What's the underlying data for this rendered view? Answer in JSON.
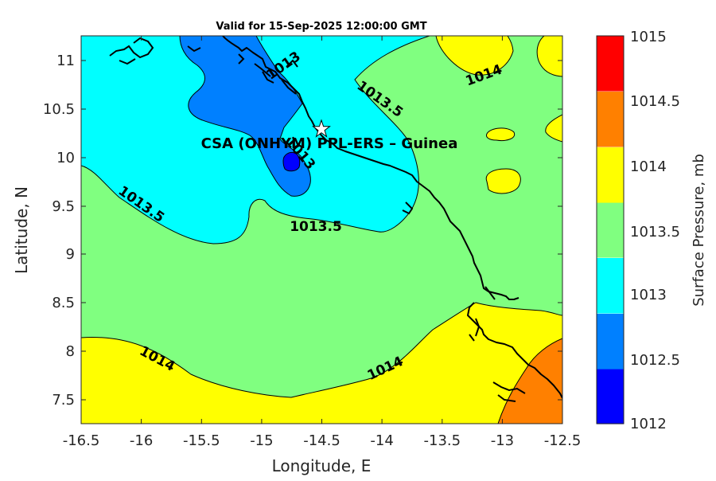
{
  "title": "Valid for 15-Sep-2025 12:00:00 GMT",
  "site_label": "CSA (ONHYM) PPL-ERS  – Guinea",
  "colors": {
    "c1012": "#0000ff",
    "c1012_5": "#0080ff",
    "c1013": "#00ffff",
    "c1013_5": "#80ff80",
    "c1014": "#ffff00",
    "c1014_5": "#ff8000",
    "c1015": "#ff0000"
  },
  "chart_data": {
    "type": "filled-contour-map",
    "xlabel": "Longitude, E",
    "ylabel": "Latitude, N",
    "xlim": [
      -16.5,
      -12.5
    ],
    "ylim": [
      7.25,
      11.25
    ],
    "x_ticks": [
      "-16.5",
      "-16",
      "-15.5",
      "-15",
      "-14.5",
      "-14",
      "-13.5",
      "-13",
      "-12.5"
    ],
    "y_ticks": [
      "7.5",
      "8",
      "8.5",
      "9",
      "9.5",
      "10",
      "10.5",
      "11"
    ],
    "colorbar": {
      "label": "Surface Pressure, mb",
      "levels": [
        "1012",
        "1012.5",
        "1013",
        "1013.5",
        "1014",
        "1014.5",
        "1015"
      ]
    },
    "contour_labels": [
      {
        "text": "1013",
        "lon": -14.75,
        "lat": 10.85
      },
      {
        "text": "1013",
        "lon": -14.72,
        "lat": 10.05
      },
      {
        "text": "1013.5",
        "lon": -14.02,
        "lat": 10.6
      },
      {
        "text": "1013.5",
        "lon": -16.2,
        "lat": 9.6
      },
      {
        "text": "1013.5",
        "lon": -14.6,
        "lat": 9.3
      },
      {
        "text": "1014",
        "lon": -13.23,
        "lat": 10.85
      },
      {
        "text": "1014",
        "lon": -16.15,
        "lat": 7.92
      },
      {
        "text": "1014",
        "lon": -13.96,
        "lat": 7.9
      }
    ],
    "site_marker": {
      "lon": -14.5,
      "lat": 10.28
    }
  }
}
